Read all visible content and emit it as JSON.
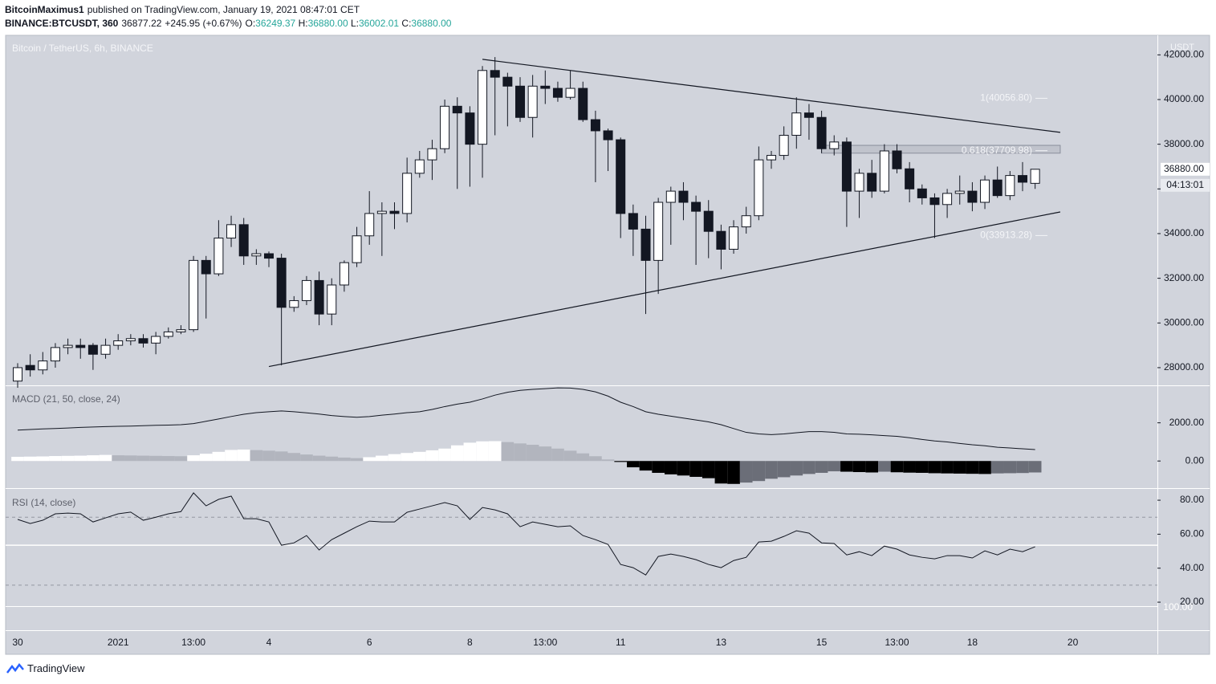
{
  "header": {
    "author": "BitcoinMaximus1",
    "published": "published on TradingView.com, January 19, 2021 08:47:01 CET",
    "symbol": "BINANCE:BTCUSDT, 360",
    "last": "36877.22",
    "change": "+245.95 (+0.67%)",
    "open_label": "O:",
    "open": "36249.37",
    "high_label": "H:",
    "high": "36880.00",
    "low_label": "L:",
    "low": "36002.01",
    "close_label": "C:",
    "close": "36880.00"
  },
  "footer": {
    "brand": "TradingView"
  },
  "chart_data": [
    {
      "type": "candlestick",
      "title": "Bitcoin / TetherUS, 6h, BINANCE",
      "unit_label": "USDT",
      "categories": [
        "30",
        null,
        null,
        null,
        null,
        null,
        null,
        null,
        "2021",
        null,
        null,
        null,
        null,
        null,
        "13:00",
        null,
        null,
        null,
        null,
        null,
        "4",
        null,
        null,
        null,
        null,
        null,
        null,
        null,
        "6",
        null,
        null,
        null,
        null,
        null,
        null,
        null,
        "8",
        null,
        null,
        null,
        null,
        null,
        "13:00",
        null,
        null,
        null,
        null,
        null,
        "11",
        null,
        null,
        null,
        null,
        null,
        null,
        null,
        "13",
        null,
        null,
        null,
        null,
        null,
        null,
        null,
        "15",
        null,
        null,
        null,
        null,
        null,
        "13:00",
        null,
        null,
        null,
        null,
        null,
        "18",
        null,
        null,
        null,
        null,
        null,
        null,
        null,
        "20",
        null,
        null,
        null,
        null,
        null,
        null
      ],
      "open": [
        27400,
        28100,
        27900,
        28300,
        28900,
        29000,
        29000,
        28600,
        29000,
        29200,
        29300,
        29100,
        29400,
        29600,
        29700,
        32800,
        32200,
        33800,
        34400,
        33000,
        33100,
        32900,
        30700,
        31000,
        31900,
        30400,
        31700,
        32700,
        33900,
        34900,
        35000,
        34900,
        36700,
        37300,
        37800,
        39700,
        39400,
        38000,
        41300,
        41000,
        40600,
        39200,
        40600,
        40500,
        40100,
        40500,
        39100,
        38600,
        38200,
        34900,
        34200,
        32800,
        35400,
        35900,
        35400,
        35000,
        34100,
        33300,
        34300,
        34800,
        37300,
        37500,
        38400,
        39400,
        39200,
        37800,
        38100,
        35900,
        36700,
        35900,
        37700,
        36900,
        36000,
        35600,
        35300,
        35800,
        35900,
        35400,
        36400,
        35700,
        36600,
        36249.37,
        null,
        null,
        null,
        null,
        null,
        null,
        null,
        null,
        null
      ],
      "high": [
        28200,
        28600,
        28700,
        29100,
        29300,
        29300,
        29100,
        29300,
        29500,
        29500,
        29500,
        29600,
        29800,
        29900,
        33000,
        33000,
        34600,
        34800,
        34700,
        33300,
        33200,
        33100,
        31200,
        32100,
        32300,
        32000,
        32800,
        34300,
        35900,
        35400,
        35400,
        37400,
        37700,
        38200,
        40000,
        40100,
        39700,
        41500,
        41900,
        41200,
        41000,
        41100,
        41300,
        40800,
        41300,
        40800,
        39500,
        38700,
        38300,
        35300,
        34800,
        35600,
        36100,
        36300,
        35700,
        35500,
        34400,
        34600,
        35200,
        37900,
        37700,
        38800,
        40100,
        39800,
        39500,
        38400,
        38300,
        36900,
        37300,
        38000,
        38000,
        37200,
        36200,
        35800,
        36000,
        36600,
        36300,
        36600,
        37000,
        36800,
        37200,
        36880,
        null,
        null,
        null,
        null,
        null,
        null,
        null,
        null,
        null
      ],
      "low": [
        27100,
        27600,
        27700,
        28000,
        28600,
        28400,
        27900,
        28400,
        28800,
        29000,
        28900,
        28600,
        29300,
        29500,
        29600,
        30200,
        32100,
        33400,
        32600,
        32600,
        32500,
        28100,
        30500,
        30800,
        29900,
        29900,
        31400,
        32500,
        33500,
        33000,
        34200,
        34500,
        36500,
        36400,
        37600,
        36000,
        36100,
        36500,
        38400,
        38800,
        39000,
        38300,
        39800,
        39900,
        40000,
        39000,
        36300,
        36800,
        33800,
        33000,
        30400,
        31300,
        33500,
        34600,
        32600,
        32900,
        32400,
        33100,
        34000,
        34600,
        36900,
        37300,
        37800,
        38200,
        37600,
        37500,
        34300,
        34700,
        35600,
        35800,
        36700,
        35400,
        35300,
        33800,
        34700,
        35300,
        35000,
        35100,
        35600,
        35500,
        35900,
        36002.01,
        null,
        null,
        null,
        null,
        null,
        null,
        null,
        null,
        null
      ],
      "close": [
        28000,
        27900,
        28300,
        28900,
        29000,
        28900,
        28600,
        29000,
        29200,
        29300,
        29100,
        29400,
        29600,
        29700,
        32800,
        32200,
        33800,
        34400,
        33000,
        33100,
        32900,
        30700,
        31000,
        31900,
        30400,
        31700,
        32700,
        33900,
        34900,
        35000,
        34900,
        36700,
        37300,
        37800,
        39700,
        39400,
        38000,
        41300,
        41000,
        40600,
        39200,
        40600,
        40500,
        40100,
        40500,
        39100,
        38600,
        38200,
        34900,
        34200,
        32800,
        35400,
        35900,
        35400,
        35000,
        34100,
        33300,
        34300,
        34800,
        37300,
        37500,
        38400,
        39400,
        39200,
        37800,
        38100,
        35900,
        36700,
        35900,
        37700,
        36900,
        36000,
        35600,
        35300,
        35800,
        35900,
        35400,
        36400,
        35700,
        36600,
        36300,
        36880,
        null,
        null,
        null,
        null,
        null,
        null,
        null,
        null,
        null
      ],
      "up_color": "#ffffff",
      "down_color": "#131722",
      "wick_color": "#131722",
      "ylim": [
        27208,
        42838
      ],
      "yticks": [
        {
          "value": 28000,
          "label": "28000.00"
        },
        {
          "value": 30000,
          "label": "30000.00"
        },
        {
          "value": 32000,
          "label": "32000.00"
        },
        {
          "value": 34000,
          "label": "34000.00"
        },
        {
          "value": 36000,
          "label": "36000.00"
        },
        {
          "value": 38000,
          "label": "38000.00"
        },
        {
          "value": 40000,
          "label": "40000.00"
        },
        {
          "value": 42000,
          "label": "42000.00"
        }
      ],
      "last_price": {
        "value": 36880,
        "label": "36880.00"
      },
      "countdown": "04:13:01",
      "trendlines": [
        {
          "x1": 37,
          "y1": 41800,
          "x2": 83,
          "y2": 38530
        },
        {
          "x1": 20,
          "y1": 28050,
          "x2": 83,
          "y2": 34970
        }
      ],
      "fib_box": {
        "x1": 64,
        "x2": 83,
        "y1": 37600,
        "y2": 37950
      },
      "fib_levels": [
        {
          "value": 40056.8,
          "label": "1(40056.80)"
        },
        {
          "value": 37709.98,
          "label": "0.618(37709.98)"
        },
        {
          "value": 33913.28,
          "label": "0(33913.28)"
        }
      ]
    },
    {
      "type": "macd",
      "title": "MACD (21, 50, close, 24)",
      "line_color": "#131722",
      "histogram_colors": {
        "pos_up": "#ffffff",
        "pos_down": "#b2b5be",
        "neg_down": "#000000",
        "neg_up": "#6b6e78"
      },
      "macd": [
        1620,
        1650,
        1680,
        1700,
        1730,
        1760,
        1780,
        1800,
        1820,
        1830,
        1850,
        1870,
        1880,
        1900,
        1960,
        2080,
        2200,
        2330,
        2450,
        2530,
        2580,
        2620,
        2580,
        2520,
        2460,
        2380,
        2330,
        2290,
        2330,
        2400,
        2460,
        2530,
        2580,
        2700,
        2850,
        2980,
        3080,
        3250,
        3450,
        3600,
        3700,
        3750,
        3790,
        3830,
        3820,
        3750,
        3620,
        3400,
        3080,
        2850,
        2580,
        2450,
        2350,
        2250,
        2150,
        2050,
        1900,
        1700,
        1500,
        1420,
        1380,
        1420,
        1480,
        1540,
        1540,
        1500,
        1420,
        1400,
        1370,
        1330,
        1290,
        1220,
        1130,
        1050,
        1000,
        920,
        850,
        800,
        720,
        680,
        640,
        600
      ],
      "histogram": [
        220,
        230,
        240,
        260,
        270,
        280,
        300,
        320,
        300,
        290,
        280,
        270,
        260,
        250,
        300,
        380,
        480,
        580,
        600,
        570,
        540,
        500,
        420,
        340,
        280,
        230,
        180,
        150,
        200,
        280,
        360,
        420,
        480,
        560,
        650,
        820,
        960,
        1030,
        1040,
        990,
        920,
        850,
        760,
        650,
        540,
        400,
        250,
        80,
        -50,
        -330,
        -500,
        -620,
        -700,
        -760,
        -830,
        -900,
        -1180,
        -1200,
        -1130,
        -1050,
        -930,
        -850,
        -760,
        -680,
        -620,
        -540,
        -560,
        -580,
        -600,
        -560,
        -590,
        -610,
        -620,
        -640,
        -650,
        -660,
        -670,
        -680,
        -650,
        -640,
        -630,
        -600
      ],
      "ylim": [
        -1420,
        3920
      ],
      "yticks": [
        {
          "value": 2000,
          "label": "2000.00"
        },
        {
          "value": 0,
          "label": "0.00"
        }
      ]
    },
    {
      "type": "line",
      "title": "RSI (14, close)",
      "color": "#131722",
      "values": [
        68.7,
        66.3,
        68.2,
        72,
        72.4,
        72,
        67.2,
        69.6,
        72,
        73,
        68.2,
        70,
        72,
        73.3,
        84.3,
        76.7,
        80.5,
        82.4,
        69.1,
        69.1,
        67.2,
        53.5,
        54.9,
        59.2,
        50.7,
        56.8,
        60.6,
        64.4,
        67.7,
        67.2,
        67.2,
        72.9,
        74.8,
        76.7,
        78.6,
        76.7,
        68.7,
        75.7,
        74.3,
        72,
        64.4,
        67.2,
        65.8,
        64.4,
        64.9,
        59.2,
        56.8,
        54,
        42.2,
        40.3,
        36,
        46.9,
        48.3,
        46.9,
        45,
        42.2,
        40.3,
        44.5,
        46.4,
        55.4,
        55.9,
        58.7,
        62,
        60.6,
        54.9,
        54.5,
        47.8,
        49.7,
        47.4,
        53,
        51.2,
        47.8,
        46.4,
        45.5,
        47.4,
        47.4,
        46,
        50.2,
        47.8,
        51.2,
        49.7,
        52.6
      ],
      "ylim": [
        3.5,
        85.7
      ],
      "yticks": [
        {
          "value": 80,
          "label": "80.00"
        },
        {
          "value": 60,
          "label": "60.00"
        },
        {
          "value": 40,
          "label": "40.00"
        },
        {
          "value": 20,
          "label": "20.00"
        }
      ],
      "levels": [
        70,
        30
      ],
      "hline": 53.5,
      "overlay_label": "100.00"
    }
  ]
}
